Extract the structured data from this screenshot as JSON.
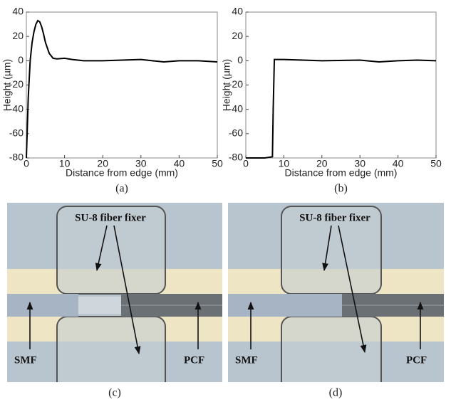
{
  "chart_data": [
    {
      "type": "line",
      "x_label": "Distance from edge (mm)",
      "y_label": "Height (µm)",
      "caption": "(a)",
      "xlim": [
        0,
        50
      ],
      "ylim": [
        -80,
        40
      ],
      "xticks": [
        0,
        10,
        20,
        30,
        40,
        50
      ],
      "yticks": [
        -80,
        -60,
        -40,
        -20,
        0,
        20,
        40
      ],
      "series": [
        {
          "color": "#000000",
          "x": [
            0,
            0.5,
            1,
            1.5,
            2,
            2.5,
            3,
            3.5,
            4,
            4.5,
            5,
            6,
            7,
            8,
            10,
            12,
            15,
            20,
            25,
            30,
            33,
            36,
            40,
            45,
            50
          ],
          "values": [
            -80,
            -30,
            0,
            15,
            24,
            30,
            33,
            32,
            28,
            22,
            15,
            6,
            2,
            1.5,
            2,
            1,
            0,
            0,
            0.5,
            1,
            0,
            -1,
            0,
            0,
            -1
          ]
        }
      ]
    },
    {
      "type": "line",
      "x_label": "Distance from edge (mm)",
      "y_label": "Height (µm)",
      "caption": "(b)",
      "xlim": [
        0,
        50
      ],
      "ylim": [
        -80,
        40
      ],
      "xticks": [
        0,
        10,
        20,
        30,
        40,
        50
      ],
      "yticks": [
        -80,
        -60,
        -40,
        -20,
        0,
        20,
        40
      ],
      "series": [
        {
          "color": "#000000",
          "x": [
            0,
            5,
            7,
            7.2,
            7.5,
            10,
            20,
            30,
            35,
            40,
            45,
            50
          ],
          "values": [
            -80,
            -80,
            -79,
            -40,
            1,
            1,
            0,
            0.5,
            -1,
            0,
            0.5,
            0
          ]
        }
      ]
    }
  ],
  "panels": [
    {
      "caption": "(c)",
      "fixer": "SU-8 fiber fixer",
      "left": "SMF",
      "right": "PCF"
    },
    {
      "caption": "(d)",
      "fixer": "SU-8 fiber fixer",
      "left": "SMF",
      "right": "PCF"
    }
  ]
}
